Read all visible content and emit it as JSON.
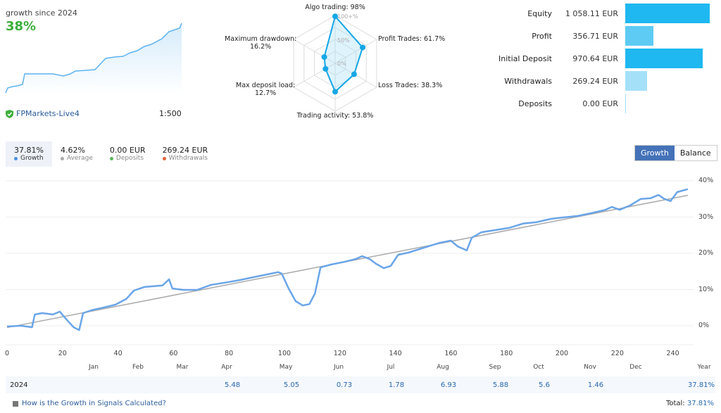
{
  "summary": {
    "growth_label": "growth since 2024",
    "growth_value": "38%",
    "server": "FPMarkets-Live4",
    "leverage": "1:500"
  },
  "radar": {
    "axes": [
      {
        "label": "Algo trading: 98%",
        "value": 98
      },
      {
        "label": "Profit Trades: 61.7%",
        "value": 61.7
      },
      {
        "label": "Loss Trades: 38.3%",
        "value": 38.3
      },
      {
        "label": "Trading activity: 53.8%",
        "value": 53.8
      },
      {
        "label": "Max deposit load:",
        "value2": "12.7%",
        "value": 12.7
      },
      {
        "label": "Maximum drawdown:",
        "value2": "16.2%",
        "value": 16.2
      }
    ],
    "ticks": [
      "100+%",
      "50%",
      "0%"
    ]
  },
  "finance": [
    {
      "label": "Equity",
      "value": "1 058.11 EUR",
      "amount": 1058.11,
      "color": "#1fb8f0"
    },
    {
      "label": "Profit",
      "value": "356.71 EUR",
      "amount": 356.71,
      "color": "#5dcbf3"
    },
    {
      "label": "Initial Deposit",
      "value": "970.64 EUR",
      "amount": 970.64,
      "color": "#1fb8f0"
    },
    {
      "label": "Withdrawals",
      "value": "269.24 EUR",
      "amount": 269.24,
      "color": "#a4e1f8"
    },
    {
      "label": "Deposits",
      "value": "0.00 EUR",
      "amount": 0,
      "color": "#a4e1f8"
    }
  ],
  "stats": [
    {
      "value": "37.81%",
      "label": "Growth",
      "color": "#4a90e2"
    },
    {
      "value": "4.62%",
      "label": "Average",
      "color": "#aaaaaa"
    },
    {
      "value": "0.00 EUR",
      "label": "Deposits",
      "color": "#5cb85c"
    },
    {
      "value": "269.24 EUR",
      "label": "Withdrawals",
      "color": "#e8623a"
    }
  ],
  "toggle": {
    "growth": "Growth",
    "balance": "Balance"
  },
  "chart_data": {
    "type": "line",
    "x_ticks": [
      "0",
      "20",
      "40",
      "60",
      "80",
      "100",
      "120",
      "140",
      "160",
      "180",
      "200",
      "220",
      "240"
    ],
    "y_ticks": [
      "40%",
      "30%",
      "20%",
      "10%",
      "0%"
    ],
    "xlim": [
      0,
      248
    ],
    "ylim": [
      -3,
      41
    ],
    "months": [
      "Jan",
      "Feb",
      "Mar",
      "Apr",
      "May",
      "Jun",
      "Jul",
      "Aug",
      "Sep",
      "Oct",
      "Nov",
      "Dec",
      "Year"
    ],
    "series": [
      {
        "color": "#6aa5e8",
        "x": [
          0,
          5,
          9,
          10,
          12.7,
          16.5,
          19,
          21.6,
          24,
          26,
          27.4,
          30.5,
          34,
          39,
          43,
          45.7,
          49.5,
          56,
          58.4,
          59.6,
          63.5,
          68.5,
          73.6,
          78.7,
          83.8,
          88.8,
          93.9,
          97.7,
          99,
          101.5,
          104,
          106.6,
          109,
          111,
          113,
          116.8,
          122,
          125.6,
          128,
          130.7,
          133,
          135.8,
          138.3,
          141,
          144.7,
          149.7,
          156,
          160,
          162.4,
          165.7,
          167.5,
          171,
          176,
          181,
          186,
          191,
          196,
          200.5,
          205.6,
          210.7,
          215.7,
          218,
          220.8,
          224.6,
          228.4,
          232,
          234.8,
          237,
          239.2,
          241.6,
          245.4
        ],
        "y": [
          -0.2,
          0,
          -0.4,
          3.1,
          3.5,
          3.1,
          3.9,
          1.6,
          -0.4,
          -1.2,
          3.5,
          4.3,
          4.9,
          5.8,
          7.4,
          9.7,
          10.7,
          11.1,
          12.8,
          10.3,
          9.9,
          9.9,
          11.3,
          11.9,
          12.6,
          13.4,
          14.2,
          14.8,
          14.4,
          10.3,
          6.8,
          5.6,
          6,
          8.9,
          16.1,
          16.9,
          17.7,
          18.4,
          19.2,
          18.4,
          17.1,
          15.9,
          16.5,
          19.6,
          20.2,
          21.4,
          22.9,
          23.5,
          21.9,
          20.8,
          24.3,
          25.8,
          26.4,
          27,
          28.2,
          28.6,
          29.5,
          29.9,
          30.3,
          31.1,
          32,
          32.8,
          32,
          33.2,
          35,
          35.2,
          36.1,
          35,
          34.4,
          36.9,
          37.7
        ]
      }
    ],
    "trend": {
      "x": [
        0,
        245.4
      ],
      "y": [
        -0.5,
        36
      ],
      "color": "#aaaaaa"
    }
  },
  "year_row": {
    "year": "2024",
    "values": [
      "",
      "",
      "",
      "5.48",
      "5.05",
      "0.73",
      "1.78",
      "6.93",
      "5.88",
      "5.6",
      "1.46",
      "",
      "37.81%"
    ]
  },
  "footer": {
    "how": "How is the Growth in Signals Calculated?",
    "total_label": "Total:",
    "total_value": "37.81%"
  }
}
